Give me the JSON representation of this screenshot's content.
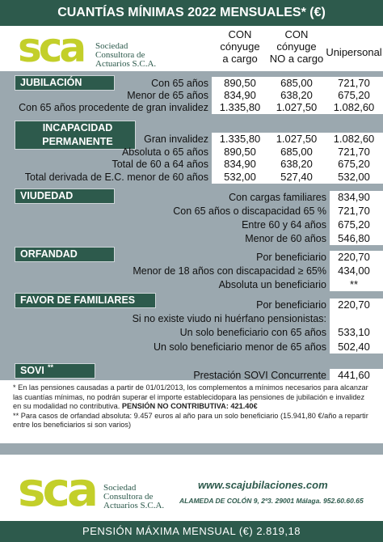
{
  "header": {
    "title": "CUANTÍAS MÍNIMAS 2022 MENSUALES* (€)"
  },
  "logo": {
    "letters": "sca",
    "name": [
      "Sociedad",
      "Consultora de",
      "Actuarios S.C.A."
    ]
  },
  "columns": [
    [
      "CON",
      "cónyuge",
      "a cargo"
    ],
    [
      "CON",
      "cónyuge",
      "NO a cargo"
    ],
    [
      "Unipersonal"
    ]
  ],
  "sections": [
    {
      "title": [
        "JUBILACIÓN"
      ],
      "rows": [
        {
          "label": "Con 65 años",
          "values": [
            "890,50",
            "685,00",
            "721,70"
          ]
        },
        {
          "label": "Menor de 65 años",
          "values": [
            "834,90",
            "638,20",
            "675,20"
          ]
        },
        {
          "label": "Con 65 años procedente de gran invalidez",
          "values": [
            "1.335,80",
            "1.027,50",
            "1.082,60"
          ]
        }
      ]
    },
    {
      "title": [
        "INCAPACIDAD",
        "PERMANENTE"
      ],
      "rows": [
        {
          "label": "Gran invalidez",
          "values": [
            "1.335,80",
            "1.027,50",
            "1.082,60"
          ]
        },
        {
          "label": "Absoluta o 65 años",
          "values": [
            "890,50",
            "685,00",
            "721,70"
          ]
        },
        {
          "label": "Total de 60 a 64 años",
          "values": [
            "834,90",
            "638,20",
            "675,20"
          ]
        },
        {
          "label": "Total derivada de E.C. menor de 60 años",
          "values": [
            "532,00",
            "527,40",
            "532,00"
          ]
        }
      ]
    },
    {
      "title": [
        "VIUDEDAD"
      ],
      "rows": [
        {
          "label": "Con cargas familiares",
          "values": [
            "834,90"
          ]
        },
        {
          "label": "Con 65 años o discapacidad 65 %",
          "values": [
            "721,70"
          ]
        },
        {
          "label": "Entre 60 y 64 años",
          "values": [
            "675,20"
          ]
        },
        {
          "label": "Menor de 60 años",
          "values": [
            "546,80"
          ]
        }
      ]
    },
    {
      "title": [
        "ORFANDAD"
      ],
      "rows": [
        {
          "label": "Por beneficiario",
          "values": [
            "220,70"
          ]
        },
        {
          "label": "Menor de 18 años con discapacidad ≥ 65%",
          "values": [
            "434,00"
          ]
        },
        {
          "label": "Absoluta un beneficiario",
          "values": [
            "**"
          ]
        }
      ]
    },
    {
      "title": [
        "FAVOR DE FAMILIARES"
      ],
      "rows": [
        {
          "label": "Por beneficiario",
          "values": [
            "220,70"
          ]
        },
        {
          "label": "Si no existe viudo ni huérfano pensionistas:",
          "values": []
        },
        {
          "label": "Un solo beneficiario con 65 años",
          "values": [
            "533,10"
          ]
        },
        {
          "label": "Un solo beneficiario menor de 65 años",
          "values": [
            "502,40"
          ]
        }
      ]
    },
    {
      "title": [
        "SOVI"
      ],
      "title_sup": "**",
      "rows": [
        {
          "label": "Prestación SOVI Concurrente",
          "values": [
            "441,60"
          ]
        }
      ]
    }
  ],
  "notes": {
    "note1": "* En las pensiones causadas a partir de 01/01/2013, los complementos a mínimos necesarios para alcanzar las cuantías mínimas, no podrán superar el importe establecidopara las pensiones de jubilación e invalidez en su modalidad no contributiva.",
    "note1_bold": "PENSIÓN NO CONTRIBUTIVA: 421.40€",
    "note2": "** Para casos de orfandad absoluta: 9.457 euros al año para un solo beneficiario (15.941,80 €/año a repartir entre los beneficiarios si son varios)"
  },
  "footer": {
    "letters": "sca",
    "name": [
      "Sociedad",
      "Consultora de",
      "Actuarios S.C.A."
    ],
    "website": "www.scajubilaciones.com",
    "address": "ALAMEDA DE COLÓN 9, 2º3. 29001 Málaga. 952.60.60.65"
  },
  "bottom": {
    "text": "PENSIÓN MÁXIMA MENSUAL (€) 2.819,18"
  }
}
